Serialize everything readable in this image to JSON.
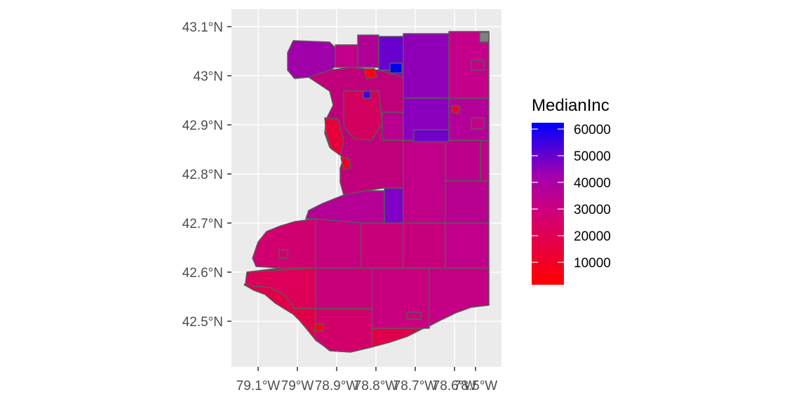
{
  "legend": {
    "title": "MedianInc",
    "labels": [
      "60000",
      "50000",
      "40000",
      "30000",
      "20000",
      "10000"
    ]
  },
  "axes": {
    "y_ticks": [
      "43.1°N",
      "43°N",
      "42.9°N",
      "42.8°N",
      "42.7°N",
      "42.6°N",
      "42.5°N"
    ],
    "x_ticks": [
      "79.1°W",
      "79°W",
      "78.9°W",
      "78.8°W",
      "78.7°W",
      "78.6°W",
      "78.5°W"
    ]
  },
  "colors": {
    "panel_bg": "#ebebeb",
    "grid": "#ffffff",
    "border": "#5a5a5a",
    "low": "#ff0000",
    "mid": "#a000a0",
    "high": "#0000ff",
    "na": "#7f7f7f"
  },
  "chart_data": {
    "type": "choropleth",
    "fill_variable": "MedianInc",
    "color_scale": {
      "low": "#ff0000",
      "high": "#0000ff",
      "range": [
        0,
        62000
      ]
    },
    "x_range_deg": [
      -79.15,
      -78.45
    ],
    "y_range_deg": [
      42.42,
      43.12
    ]
  }
}
